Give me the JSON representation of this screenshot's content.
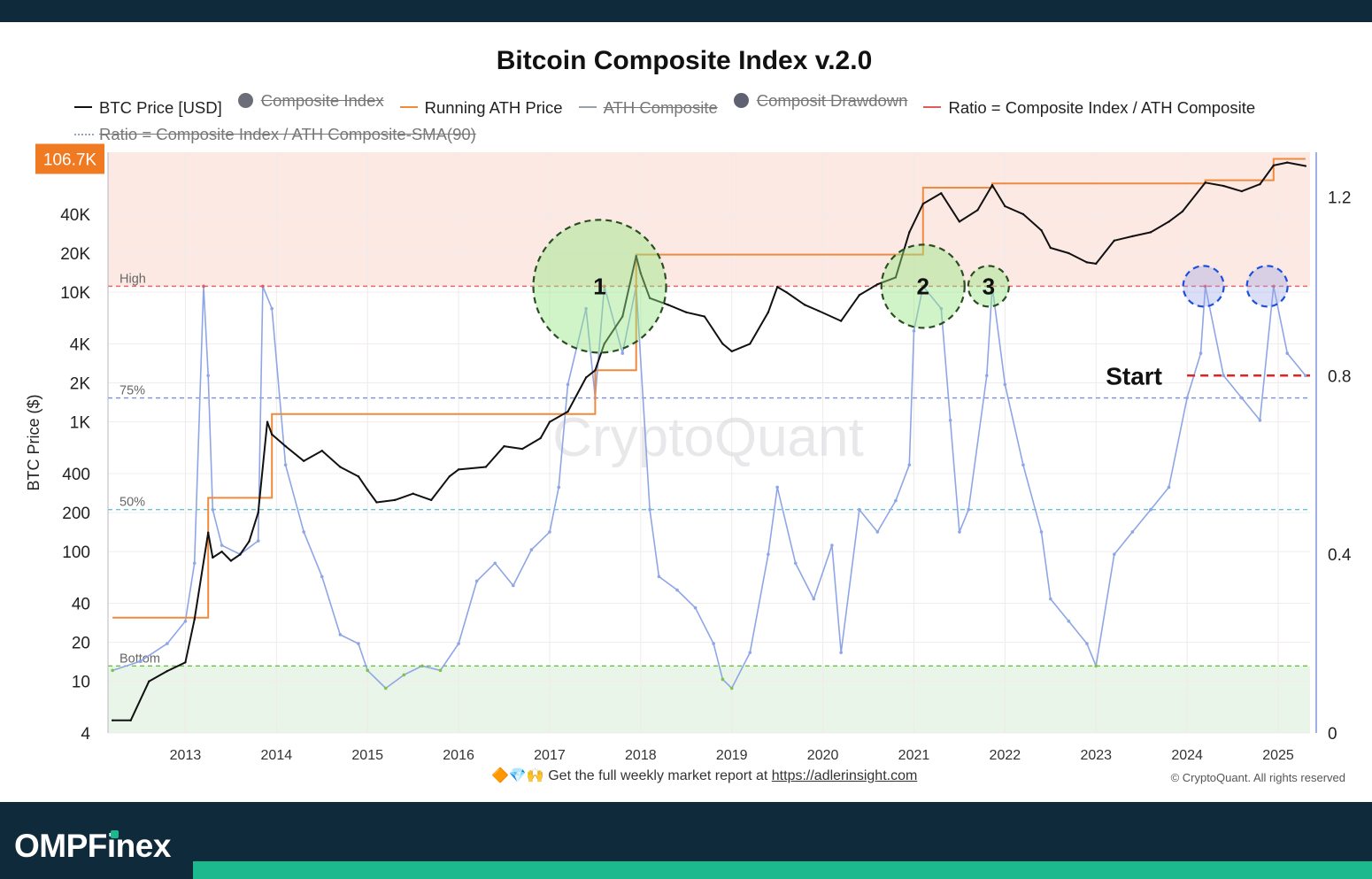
{
  "brand": {
    "name_before": "OMPF",
    "name_i": "i",
    "name_after": "nex",
    "accent": "#1cb88e",
    "bar": "#0e2a3b"
  },
  "footer_note": {
    "emoji": "🔶💎🙌",
    "text": "Get the full weekly market report at",
    "link": "https://adlerinsight.com"
  },
  "copyright": "© CryptoQuant. All rights reserved",
  "watermark": "CryptoQuant",
  "legend": [
    {
      "label": "BTC Price [USD]",
      "kind": "line",
      "color": "#111111",
      "active": true
    },
    {
      "label": "Composite Index",
      "kind": "dot",
      "color": "#6b6e78",
      "active": false
    },
    {
      "label": "Running ATH Price",
      "kind": "line",
      "color": "#f08a3c",
      "active": true
    },
    {
      "label": "ATH Composite",
      "kind": "line",
      "color": "#9aa0aa",
      "active": false
    },
    {
      "label": "Composit Drawdown",
      "kind": "dot",
      "color": "#5e6270",
      "active": false
    },
    {
      "label": "Ratio = Composite Index / ATH  Composite",
      "kind": "line",
      "color": "#e05c5c",
      "active": true
    },
    {
      "label": "Ratio = Composite Index / ATH  Composite-SMA(90)",
      "kind": "dotted",
      "color": "#9aa6b5",
      "active": false
    }
  ],
  "chart_data": {
    "type": "line",
    "title": "Bitcoin Composite Index v.2.0",
    "ylabel": "BTC Price ($)",
    "y_scale": "log",
    "ylim": [
      4,
      120000
    ],
    "y2lim": [
      0,
      1.3
    ],
    "x_ticks": [
      "2013",
      "2014",
      "2015",
      "2016",
      "2017",
      "2018",
      "2019",
      "2020",
      "2021",
      "2022",
      "2023",
      "2024",
      "2025"
    ],
    "y_ticks": [
      "4",
      "10",
      "20",
      "40",
      "100",
      "200",
      "400",
      "1K",
      "2K",
      "4K",
      "10K",
      "20K",
      "40K"
    ],
    "y_tick_values": [
      4,
      10,
      20,
      40,
      100,
      200,
      400,
      1000,
      2000,
      4000,
      10000,
      20000,
      40000
    ],
    "y2_ticks": [
      "0",
      "0.4",
      "0.8",
      "1.2"
    ],
    "y2_tick_values": [
      0,
      0.4,
      0.8,
      1.2
    ],
    "price_label": "106.7K",
    "price_label_value": 106700,
    "bands": [
      {
        "name": "High",
        "label": "High",
        "value": 1.0,
        "color": "#e66a6a"
      },
      {
        "name": "75%",
        "label": "75%",
        "value": 0.75,
        "color": "#7b8fd6"
      },
      {
        "name": "50%",
        "label": "50%",
        "value": 0.5,
        "color": "#5fc7d8"
      },
      {
        "name": "Bottom",
        "label": "Bottom",
        "value": 0.15,
        "color": "#67c23a"
      }
    ],
    "start_line": {
      "label": "Start",
      "value": 0.8,
      "x": 2024.0,
      "color": "#e02424"
    },
    "series": [
      {
        "name": "BTC Price [USD]",
        "color": "#111111",
        "x": [
          2012.2,
          2012.4,
          2012.6,
          2012.8,
          2013.0,
          2013.1,
          2013.25,
          2013.3,
          2013.4,
          2013.5,
          2013.6,
          2013.7,
          2013.8,
          2013.9,
          2013.95,
          2014.1,
          2014.3,
          2014.5,
          2014.7,
          2014.9,
          2015.0,
          2015.1,
          2015.3,
          2015.5,
          2015.7,
          2015.9,
          2016.0,
          2016.3,
          2016.5,
          2016.7,
          2016.9,
          2017.0,
          2017.2,
          2017.4,
          2017.5,
          2017.6,
          2017.8,
          2017.95,
          2018.0,
          2018.1,
          2018.3,
          2018.5,
          2018.7,
          2018.9,
          2019.0,
          2019.2,
          2019.4,
          2019.5,
          2019.6,
          2019.8,
          2019.95,
          2020.2,
          2020.4,
          2020.6,
          2020.8,
          2020.95,
          2021.1,
          2021.3,
          2021.5,
          2021.7,
          2021.86,
          2022.0,
          2022.2,
          2022.4,
          2022.5,
          2022.7,
          2022.9,
          2023.0,
          2023.2,
          2023.4,
          2023.6,
          2023.8,
          2023.95,
          2024.2,
          2024.4,
          2024.6,
          2024.8,
          2024.95,
          2025.1,
          2025.3
        ],
        "values": [
          5,
          5,
          10,
          12,
          14,
          30,
          140,
          90,
          100,
          85,
          95,
          120,
          200,
          1000,
          800,
          650,
          500,
          600,
          450,
          380,
          300,
          240,
          250,
          280,
          250,
          380,
          430,
          450,
          650,
          620,
          750,
          1000,
          1200,
          2200,
          2500,
          4000,
          6500,
          19000,
          14000,
          9000,
          8000,
          7000,
          6500,
          4000,
          3500,
          4000,
          7000,
          11000,
          10000,
          8000,
          7200,
          6000,
          9500,
          11500,
          13000,
          29000,
          48000,
          58000,
          35000,
          43000,
          67000,
          46000,
          40000,
          30000,
          22000,
          20000,
          17000,
          16600,
          25000,
          27000,
          29000,
          35000,
          42000,
          70000,
          66000,
          60000,
          68000,
          95000,
          100000,
          94000
        ]
      },
      {
        "name": "Running ATH Price",
        "color": "#f08a3c",
        "x": [
          2012.2,
          2013.1,
          2013.25,
          2013.8,
          2013.95,
          2017.2,
          2017.5,
          2017.95,
          2020.95,
          2021.1,
          2021.86,
          2024.2,
          2024.95,
          2025.3
        ],
        "values": [
          31,
          31,
          260,
          260,
          1150,
          1150,
          2500,
          19500,
          19500,
          64000,
          69000,
          73000,
          106700,
          106700
        ]
      },
      {
        "name": "Ratio = Composite Index / ATH  Composite",
        "color": "#8fa6e6",
        "x": [
          2012.2,
          2012.5,
          2012.8,
          2013.0,
          2013.1,
          2013.2,
          2013.25,
          2013.3,
          2013.4,
          2013.6,
          2013.8,
          2013.85,
          2013.95,
          2014.1,
          2014.3,
          2014.5,
          2014.7,
          2014.9,
          2015.0,
          2015.2,
          2015.4,
          2015.6,
          2015.8,
          2016.0,
          2016.2,
          2016.4,
          2016.6,
          2016.8,
          2017.0,
          2017.1,
          2017.2,
          2017.4,
          2017.5,
          2017.6,
          2017.8,
          2017.95,
          2018.1,
          2018.2,
          2018.4,
          2018.6,
          2018.8,
          2018.9,
          2019.0,
          2019.2,
          2019.4,
          2019.5,
          2019.7,
          2019.9,
          2020.1,
          2020.2,
          2020.4,
          2020.6,
          2020.8,
          2020.95,
          2021.0,
          2021.1,
          2021.3,
          2021.4,
          2021.5,
          2021.6,
          2021.8,
          2021.86,
          2022.0,
          2022.2,
          2022.4,
          2022.5,
          2022.7,
          2022.9,
          2023.0,
          2023.2,
          2023.4,
          2023.6,
          2023.8,
          2024.0,
          2024.15,
          2024.2,
          2024.4,
          2024.6,
          2024.8,
          2024.95,
          2025.1,
          2025.3
        ],
        "values": [
          0.14,
          0.16,
          0.2,
          0.25,
          0.38,
          1.0,
          0.8,
          0.5,
          0.42,
          0.4,
          0.43,
          1.0,
          0.95,
          0.6,
          0.45,
          0.35,
          0.22,
          0.2,
          0.14,
          0.1,
          0.13,
          0.15,
          0.14,
          0.2,
          0.34,
          0.38,
          0.33,
          0.41,
          0.45,
          0.55,
          0.78,
          0.95,
          0.75,
          1.0,
          0.85,
          1.0,
          0.5,
          0.35,
          0.32,
          0.28,
          0.2,
          0.12,
          0.1,
          0.18,
          0.4,
          0.55,
          0.38,
          0.3,
          0.42,
          0.18,
          0.5,
          0.45,
          0.52,
          0.6,
          0.9,
          1.0,
          0.95,
          0.7,
          0.45,
          0.5,
          0.8,
          1.0,
          0.78,
          0.6,
          0.45,
          0.3,
          0.25,
          0.2,
          0.15,
          0.4,
          0.45,
          0.5,
          0.55,
          0.75,
          0.85,
          1.0,
          0.8,
          0.75,
          0.7,
          1.0,
          0.85,
          0.8
        ]
      }
    ],
    "annotations": [
      {
        "label": "1",
        "x": 2017.55,
        "ratio": 1.0,
        "style": "green-circle-large"
      },
      {
        "label": "2",
        "x": 2021.1,
        "ratio": 1.0,
        "style": "green-circle-medium"
      },
      {
        "label": "3",
        "x": 2021.82,
        "ratio": 1.0,
        "style": "green-circle-small"
      },
      {
        "label": "",
        "x": 2024.18,
        "ratio": 1.0,
        "style": "blue-circle"
      },
      {
        "label": "",
        "x": 2024.88,
        "ratio": 1.0,
        "style": "blue-circle"
      }
    ],
    "grid": true,
    "legend_position": "top-left"
  }
}
